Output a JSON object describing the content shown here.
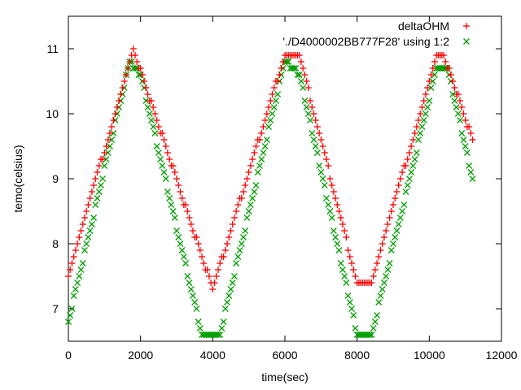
{
  "chart_data": {
    "type": "scatter",
    "xlabel": "time(sec)",
    "ylabel": "temo(celsius)",
    "xlim": [
      0,
      12000
    ],
    "ylim": [
      6.5,
      11.5
    ],
    "x_ticks": [
      0,
      2000,
      4000,
      6000,
      8000,
      10000,
      12000
    ],
    "y_ticks": [
      7,
      8,
      9,
      10,
      11
    ],
    "x_tick_labels": [
      "0",
      "2000",
      "4000",
      "6000",
      "8000",
      "10000",
      "12000"
    ],
    "y_tick_labels": [
      "7",
      "8",
      "9",
      "10",
      "11"
    ],
    "grid": false,
    "legend_position": "top-right",
    "series": [
      {
        "name": "deltaOHM",
        "marker": "plus",
        "color": "#ff0000",
        "x": [
          0,
          1800,
          4000,
          6000,
          6400,
          8000,
          8400,
          10200,
          10400,
          11200
        ],
        "y": [
          7.5,
          11.0,
          7.3,
          10.9,
          10.9,
          7.4,
          7.4,
          10.9,
          10.9,
          9.6
        ],
        "sample_interval_sec": 50
      },
      {
        "name": "'./D4000002BB777F28' using 1:2",
        "marker": "cross",
        "color": "#00a000",
        "x": [
          0,
          1700,
          2000,
          3700,
          4200,
          6000,
          6400,
          8000,
          8400,
          10200,
          10500,
          11200
        ],
        "y": [
          6.8,
          10.8,
          10.6,
          6.6,
          6.6,
          10.8,
          10.6,
          6.6,
          6.6,
          10.7,
          10.7,
          9.0
        ],
        "sample_interval_sec": 50
      }
    ]
  }
}
